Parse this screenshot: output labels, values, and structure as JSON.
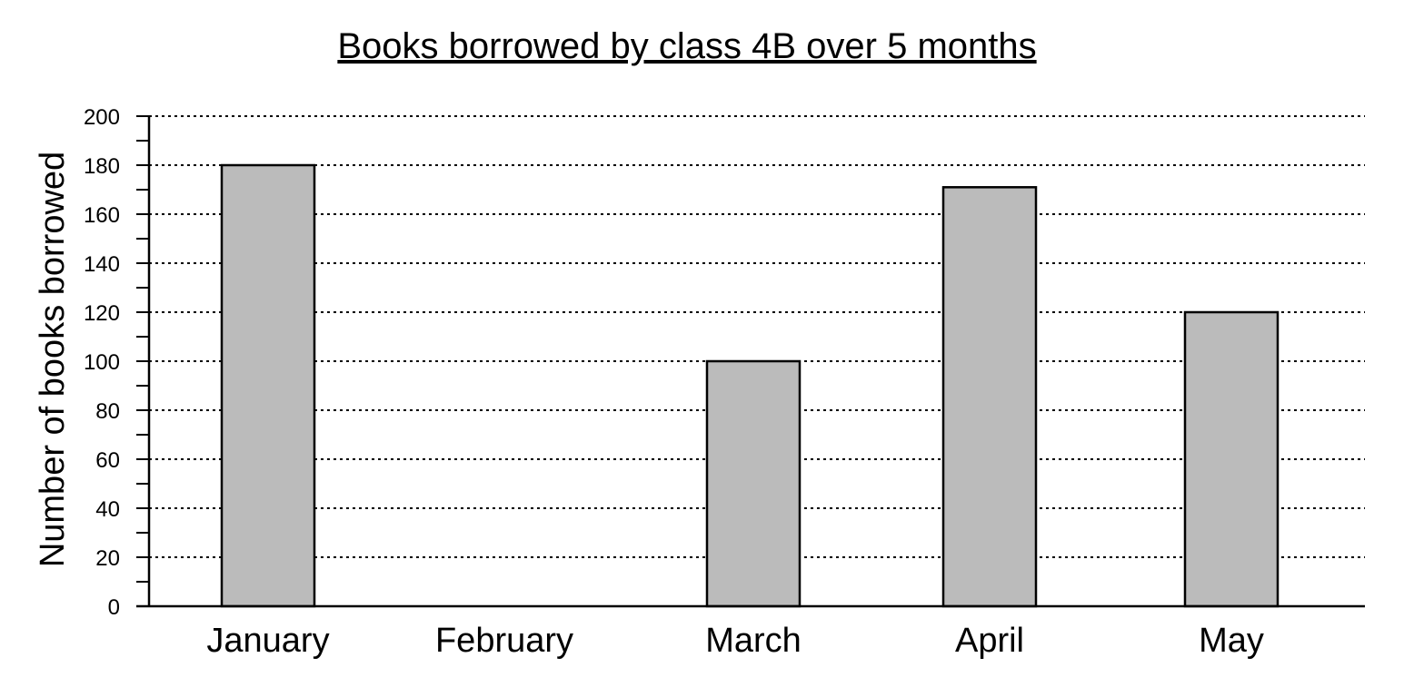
{
  "chart_data": {
    "type": "bar",
    "title": "Books borrowed by class 4B over 5 months",
    "xlabel": "",
    "ylabel": "Number of books borrowed",
    "categories": [
      "January",
      "February",
      "March",
      "April",
      "May"
    ],
    "values": [
      180,
      0,
      100,
      171,
      120
    ],
    "ylim": [
      0,
      200
    ],
    "yticks": [
      0,
      20,
      40,
      60,
      80,
      100,
      120,
      140,
      160,
      180,
      200
    ],
    "grid": "horizontal dotted",
    "legend": "none",
    "colors": {
      "bar_fill": "#bbbbbb",
      "bar_stroke": "#000000",
      "grid": "#000000",
      "axis": "#000000"
    }
  }
}
